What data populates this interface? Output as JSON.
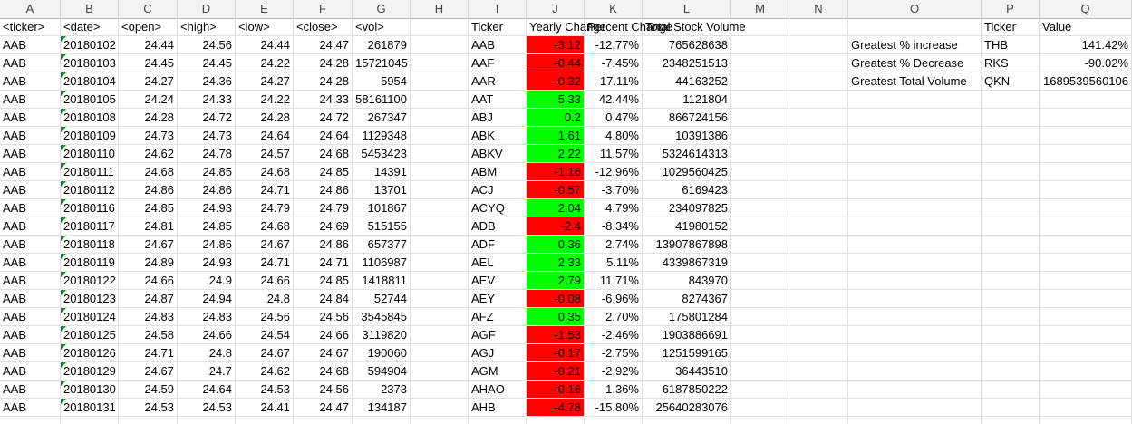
{
  "columns": [
    "A",
    "B",
    "C",
    "D",
    "E",
    "F",
    "G",
    "H",
    "I",
    "J",
    "K",
    "L",
    "M",
    "N",
    "O",
    "P",
    "Q"
  ],
  "headers": {
    "A": "<ticker>",
    "B": "<date>",
    "C": "<open>",
    "D": "<high>",
    "E": "<low>",
    "F": "<close>",
    "G": "<vol>",
    "I": "Ticker",
    "J": "Yearly Change",
    "K": "Percent Change",
    "L": "Total Stock Volume",
    "P": "Ticker",
    "Q": "Value"
  },
  "raw_rows": [
    [
      "AAB",
      "20180102",
      "24.44",
      "24.56",
      "24.44",
      "24.47",
      "261879"
    ],
    [
      "AAB",
      "20180103",
      "24.45",
      "24.45",
      "24.22",
      "24.28",
      "15721045"
    ],
    [
      "AAB",
      "20180104",
      "24.27",
      "24.36",
      "24.27",
      "24.28",
      "5954"
    ],
    [
      "AAB",
      "20180105",
      "24.24",
      "24.33",
      "24.22",
      "24.33",
      "58161100"
    ],
    [
      "AAB",
      "20180108",
      "24.28",
      "24.72",
      "24.28",
      "24.72",
      "267347"
    ],
    [
      "AAB",
      "20180109",
      "24.73",
      "24.73",
      "24.64",
      "24.64",
      "1129348"
    ],
    [
      "AAB",
      "20180110",
      "24.62",
      "24.78",
      "24.57",
      "24.68",
      "5453423"
    ],
    [
      "AAB",
      "20180111",
      "24.68",
      "24.85",
      "24.68",
      "24.85",
      "14391"
    ],
    [
      "AAB",
      "20180112",
      "24.86",
      "24.86",
      "24.71",
      "24.86",
      "13701"
    ],
    [
      "AAB",
      "20180116",
      "24.85",
      "24.93",
      "24.79",
      "24.79",
      "101867"
    ],
    [
      "AAB",
      "20180117",
      "24.81",
      "24.85",
      "24.68",
      "24.69",
      "515155"
    ],
    [
      "AAB",
      "20180118",
      "24.67",
      "24.86",
      "24.67",
      "24.86",
      "657377"
    ],
    [
      "AAB",
      "20180119",
      "24.89",
      "24.93",
      "24.71",
      "24.71",
      "1106987"
    ],
    [
      "AAB",
      "20180122",
      "24.66",
      "24.9",
      "24.66",
      "24.85",
      "1418811"
    ],
    [
      "AAB",
      "20180123",
      "24.87",
      "24.94",
      "24.8",
      "24.84",
      "52744"
    ],
    [
      "AAB",
      "20180124",
      "24.83",
      "24.83",
      "24.56",
      "24.56",
      "3545845"
    ],
    [
      "AAB",
      "20180125",
      "24.58",
      "24.66",
      "24.54",
      "24.66",
      "3119820"
    ],
    [
      "AAB",
      "20180126",
      "24.71",
      "24.8",
      "24.67",
      "24.67",
      "190060"
    ],
    [
      "AAB",
      "20180129",
      "24.67",
      "24.7",
      "24.62",
      "24.68",
      "594904"
    ],
    [
      "AAB",
      "20180130",
      "24.59",
      "24.64",
      "24.53",
      "24.56",
      "2373"
    ],
    [
      "AAB",
      "20180131",
      "24.53",
      "24.53",
      "24.41",
      "24.47",
      "134187"
    ]
  ],
  "summary_rows": [
    [
      "AAB",
      "-3.12",
      "-12.77%",
      "765628638",
      "red"
    ],
    [
      "AAF",
      "-0.44",
      "-7.45%",
      "2348251513",
      "red"
    ],
    [
      "AAR",
      "-0.32",
      "-17.11%",
      "44163252",
      "red"
    ],
    [
      "AAT",
      "5.33",
      "42.44%",
      "1121804",
      "green"
    ],
    [
      "ABJ",
      "0.2",
      "0.47%",
      "866724156",
      "green"
    ],
    [
      "ABK",
      "1.61",
      "4.80%",
      "10391386",
      "green"
    ],
    [
      "ABKV",
      "2.22",
      "11.57%",
      "5324614313",
      "green"
    ],
    [
      "ABM",
      "-1.16",
      "-12.96%",
      "1029560425",
      "red"
    ],
    [
      "ACJ",
      "-0.57",
      "-3.70%",
      "6169423",
      "red"
    ],
    [
      "ACYQ",
      "2.04",
      "4.79%",
      "234097825",
      "green"
    ],
    [
      "ADB",
      "-2.4",
      "-8.34%",
      "41980152",
      "red"
    ],
    [
      "ADF",
      "0.36",
      "2.74%",
      "13907867898",
      "green"
    ],
    [
      "AEL",
      "2.33",
      "5.11%",
      "4339867319",
      "green"
    ],
    [
      "AEV",
      "2.79",
      "11.71%",
      "843970",
      "green"
    ],
    [
      "AEY",
      "-0.08",
      "-6.96%",
      "8274367",
      "red"
    ],
    [
      "AFZ",
      "0.35",
      "2.70%",
      "175801284",
      "green"
    ],
    [
      "AGF",
      "-1.53",
      "-2.46%",
      "1903886691",
      "red"
    ],
    [
      "AGJ",
      "-0.17",
      "-2.75%",
      "1251599165",
      "red"
    ],
    [
      "AGM",
      "-0.21",
      "-2.92%",
      "36443510",
      "red"
    ],
    [
      "AHAO",
      "-0.16",
      "-1.36%",
      "6187850222",
      "red"
    ],
    [
      "AHB",
      "-4.78",
      "-15.80%",
      "25640283076",
      "red"
    ]
  ],
  "greatest": [
    {
      "label": "Greatest % increase",
      "ticker": "THB",
      "value": "141.42%"
    },
    {
      "label": "Greatest % Decrease",
      "ticker": "RKS",
      "value": "-90.02%"
    },
    {
      "label": "Greatest Total Volume",
      "ticker": "QKN",
      "value": "1689539560106"
    }
  ],
  "colors": {
    "negative": "#ff0000",
    "positive": "#00ff00",
    "header_bg": "#f3f3f3",
    "gridline": "#e1e1e1"
  }
}
